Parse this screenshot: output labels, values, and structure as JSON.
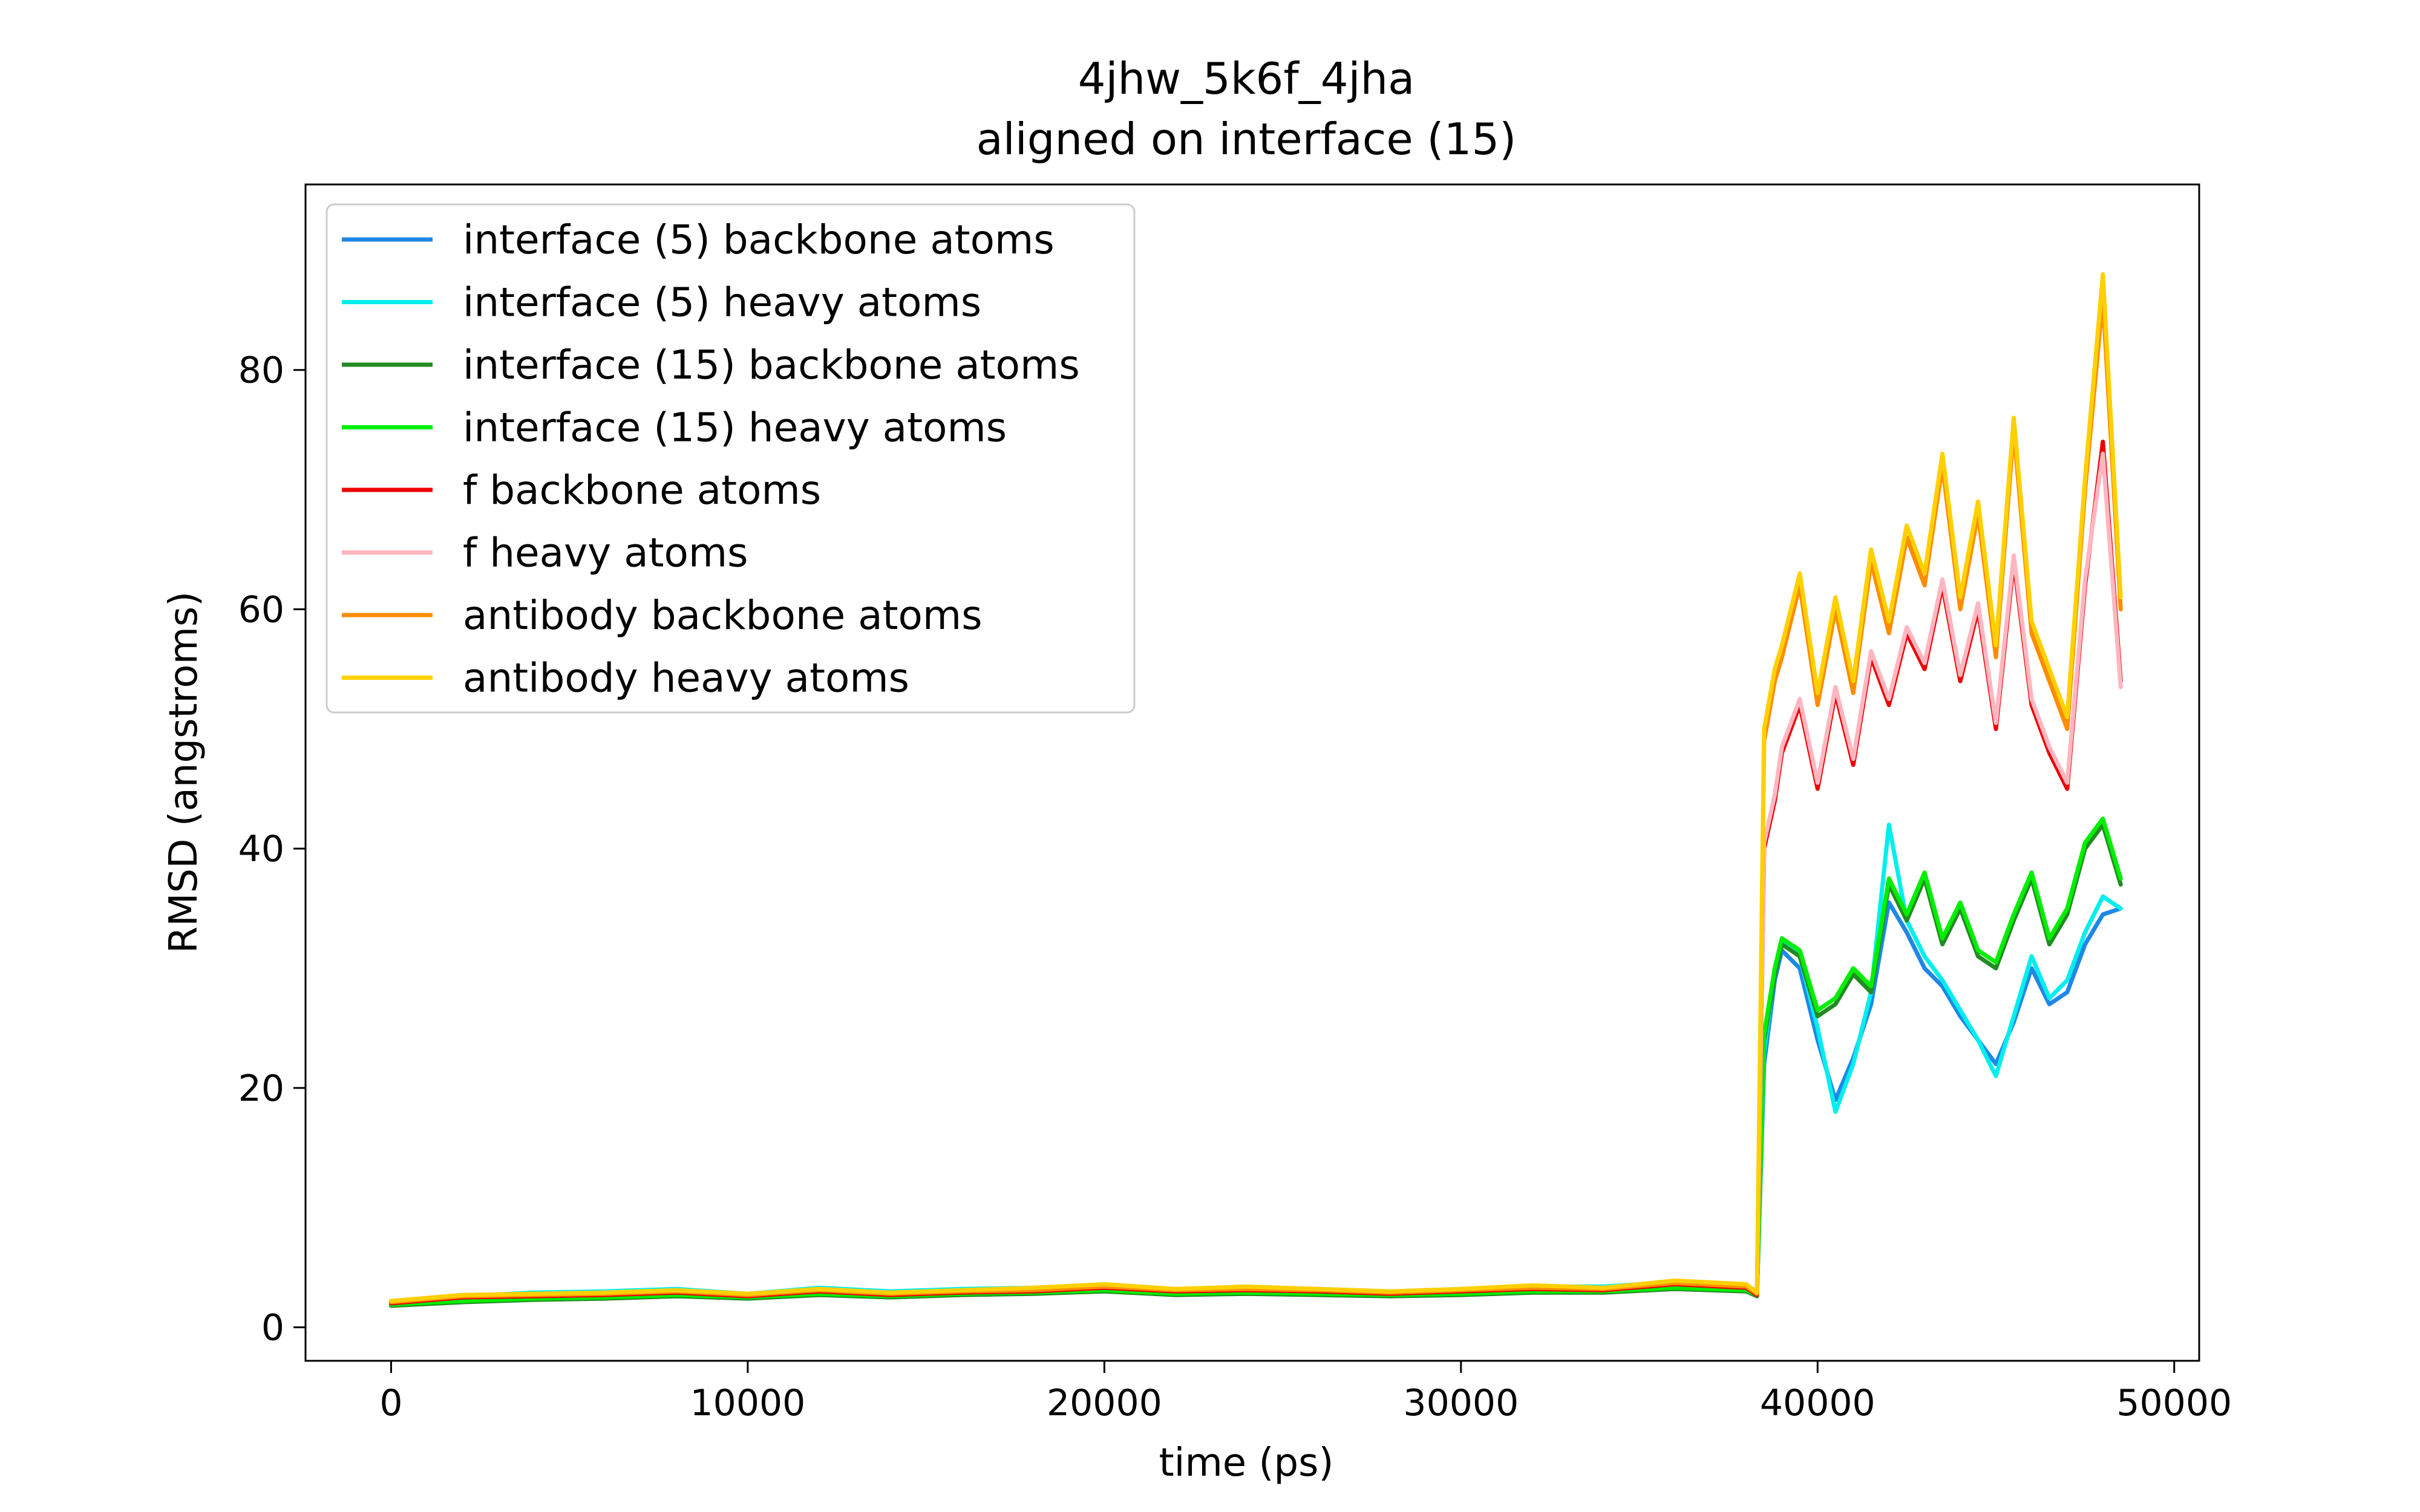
{
  "chart_data": {
    "type": "line",
    "title": "4jhw_5k6f_4jha",
    "subtitle": "aligned on interface (15)",
    "xlabel": "time (ps)",
    "ylabel": "RMSD (angstroms)",
    "xlim": [
      -2400,
      50700
    ],
    "ylim": [
      -2.8,
      95.5
    ],
    "xticks": [
      0,
      10000,
      20000,
      30000,
      40000,
      50000
    ],
    "xtick_labels": [
      "0",
      "10000",
      "20000",
      "30000",
      "40000",
      "50000"
    ],
    "yticks": [
      0,
      20,
      40,
      60,
      80
    ],
    "ytick_labels": [
      "0",
      "20",
      "40",
      "60",
      "80"
    ],
    "grid": false,
    "legend_position": "top-left",
    "series": [
      {
        "name": "interface (5) backbone atoms",
        "color": "#1e88e5",
        "x": [
          0,
          2000,
          4000,
          6000,
          8000,
          10000,
          12000,
          14000,
          16000,
          18000,
          20000,
          22000,
          24000,
          26000,
          28000,
          30000,
          32000,
          34000,
          36000,
          38000,
          38300,
          38500,
          38800,
          39000,
          39500,
          40000,
          40500,
          41000,
          41500,
          42000,
          42500,
          43000,
          43500,
          44000,
          44500,
          45000,
          45500,
          46000,
          46500,
          47000,
          47500,
          48000,
          48500
        ],
        "y": [
          2.0,
          2.4,
          2.6,
          2.7,
          2.9,
          2.6,
          3.0,
          2.8,
          3.0,
          3.1,
          3.3,
          3.0,
          3.1,
          3.0,
          2.8,
          3.0,
          3.2,
          3.2,
          3.6,
          3.3,
          2.8,
          22.0,
          29.0,
          31.5,
          30.0,
          24.0,
          19.0,
          22.5,
          27.0,
          35.5,
          33.0,
          30.0,
          28.5,
          26.0,
          24.0,
          22.0,
          25.5,
          30.0,
          27.0,
          28.0,
          32.0,
          34.5,
          35.0
        ]
      },
      {
        "name": "interface (5) heavy atoms",
        "color": "#00eeee",
        "x": [
          0,
          2000,
          4000,
          6000,
          8000,
          10000,
          12000,
          14000,
          16000,
          18000,
          20000,
          22000,
          24000,
          26000,
          28000,
          30000,
          32000,
          34000,
          36000,
          38000,
          38300,
          38500,
          38800,
          39000,
          39500,
          40000,
          40500,
          41000,
          41500,
          42000,
          42500,
          43000,
          43500,
          44000,
          44500,
          45000,
          45500,
          46000,
          46500,
          47000,
          47500,
          48000,
          48500
        ],
        "y": [
          2.2,
          2.6,
          2.9,
          3.0,
          3.2,
          2.8,
          3.3,
          3.0,
          3.2,
          3.3,
          3.5,
          3.2,
          3.3,
          3.2,
          3.0,
          3.2,
          3.4,
          3.4,
          3.8,
          3.5,
          3.0,
          23.0,
          30.0,
          32.5,
          31.0,
          25.0,
          18.0,
          22.0,
          28.0,
          42.0,
          34.0,
          31.0,
          29.0,
          26.5,
          24.0,
          21.0,
          26.0,
          31.0,
          27.5,
          29.0,
          33.0,
          36.0,
          35.0
        ]
      },
      {
        "name": "interface (15) backbone atoms",
        "color": "#228b22",
        "x": [
          0,
          2000,
          4000,
          6000,
          8000,
          10000,
          12000,
          14000,
          16000,
          18000,
          20000,
          22000,
          24000,
          26000,
          28000,
          30000,
          32000,
          34000,
          36000,
          38000,
          38300,
          38500,
          38800,
          39000,
          39500,
          40000,
          40500,
          41000,
          41500,
          42000,
          42500,
          43000,
          43500,
          44000,
          44500,
          45000,
          45500,
          46000,
          46500,
          47000,
          47500,
          48000,
          48500
        ],
        "y": [
          1.8,
          2.1,
          2.3,
          2.4,
          2.6,
          2.4,
          2.7,
          2.5,
          2.7,
          2.8,
          3.0,
          2.7,
          2.8,
          2.7,
          2.6,
          2.7,
          2.9,
          2.9,
          3.2,
          3.0,
          2.6,
          24.0,
          29.5,
          32.0,
          31.0,
          26.0,
          27.0,
          29.5,
          28.0,
          37.0,
          34.0,
          37.5,
          32.0,
          35.0,
          31.0,
          30.0,
          34.0,
          37.5,
          32.0,
          34.5,
          40.0,
          42.0,
          37.0
        ]
      },
      {
        "name": "interface (15) heavy atoms",
        "color": "#00ee00",
        "x": [
          0,
          2000,
          4000,
          6000,
          8000,
          10000,
          12000,
          14000,
          16000,
          18000,
          20000,
          22000,
          24000,
          26000,
          28000,
          30000,
          32000,
          34000,
          36000,
          38000,
          38300,
          38500,
          38800,
          39000,
          39500,
          40000,
          40500,
          41000,
          41500,
          42000,
          42500,
          43000,
          43500,
          44000,
          44500,
          45000,
          45500,
          46000,
          46500,
          47000,
          47500,
          48000,
          48500
        ],
        "y": [
          1.9,
          2.2,
          2.4,
          2.5,
          2.7,
          2.5,
          2.8,
          2.6,
          2.8,
          2.9,
          3.1,
          2.8,
          2.9,
          2.8,
          2.7,
          2.8,
          3.0,
          3.0,
          3.3,
          3.1,
          2.7,
          24.5,
          30.0,
          32.5,
          31.5,
          26.5,
          27.5,
          30.0,
          28.5,
          37.5,
          34.5,
          38.0,
          32.5,
          35.5,
          31.5,
          30.5,
          34.5,
          38.0,
          32.5,
          35.0,
          40.5,
          42.5,
          37.5
        ]
      },
      {
        "name": "f backbone atoms",
        "color": "#ee0000",
        "x": [
          0,
          2000,
          4000,
          6000,
          8000,
          10000,
          12000,
          14000,
          16000,
          18000,
          20000,
          22000,
          24000,
          26000,
          28000,
          30000,
          32000,
          34000,
          36000,
          38000,
          38300,
          38500,
          38800,
          39000,
          39500,
          40000,
          40500,
          41000,
          41500,
          42000,
          42500,
          43000,
          43500,
          44000,
          44500,
          45000,
          45500,
          46000,
          46500,
          47000,
          47500,
          48000,
          48500
        ],
        "y": [
          2.0,
          2.5,
          2.6,
          2.7,
          2.9,
          2.6,
          3.0,
          2.7,
          2.9,
          3.0,
          3.3,
          3.0,
          3.1,
          3.0,
          2.8,
          3.0,
          3.2,
          3.1,
          3.6,
          3.3,
          2.7,
          40.0,
          44.0,
          48.0,
          52.0,
          45.0,
          53.0,
          47.0,
          56.0,
          52.0,
          58.0,
          55.0,
          62.0,
          54.0,
          60.0,
          50.0,
          64.0,
          52.0,
          48.0,
          45.0,
          62.0,
          74.0,
          54.0
        ]
      },
      {
        "name": "f heavy atoms",
        "color": "#ffb6c1",
        "x": [
          0,
          2000,
          4000,
          6000,
          8000,
          10000,
          12000,
          14000,
          16000,
          18000,
          20000,
          22000,
          24000,
          26000,
          28000,
          30000,
          32000,
          34000,
          36000,
          38000,
          38300,
          38500,
          38800,
          39000,
          39500,
          40000,
          40500,
          41000,
          41500,
          42000,
          42500,
          43000,
          43500,
          44000,
          44500,
          45000,
          45500,
          46000,
          46500,
          47000,
          47500,
          48000,
          48500
        ],
        "y": [
          2.2,
          2.7,
          2.8,
          2.9,
          3.1,
          2.8,
          3.2,
          2.9,
          3.1,
          3.2,
          3.5,
          3.2,
          3.3,
          3.2,
          3.0,
          3.2,
          3.4,
          3.3,
          3.8,
          3.5,
          2.9,
          40.5,
          44.5,
          48.5,
          52.5,
          45.5,
          53.5,
          47.5,
          56.5,
          52.5,
          58.5,
          55.5,
          62.5,
          54.5,
          60.5,
          50.5,
          64.5,
          52.5,
          48.5,
          45.5,
          62.5,
          73.0,
          53.5
        ]
      },
      {
        "name": "antibody backbone atoms",
        "color": "#ff8c00",
        "x": [
          0,
          2000,
          4000,
          6000,
          8000,
          10000,
          12000,
          14000,
          16000,
          18000,
          20000,
          22000,
          24000,
          26000,
          28000,
          30000,
          32000,
          34000,
          36000,
          38000,
          38300,
          38500,
          38800,
          39000,
          39500,
          40000,
          40500,
          41000,
          41500,
          42000,
          42500,
          43000,
          43500,
          44000,
          44500,
          45000,
          45500,
          46000,
          46500,
          47000,
          47500,
          48000,
          48500
        ],
        "y": [
          2.1,
          2.6,
          2.7,
          2.8,
          3.0,
          2.7,
          3.1,
          2.8,
          3.0,
          3.1,
          3.4,
          3.1,
          3.2,
          3.1,
          2.9,
          3.1,
          3.3,
          3.2,
          3.7,
          3.4,
          2.8,
          49.0,
          54.0,
          56.0,
          62.0,
          52.0,
          60.0,
          53.0,
          64.0,
          58.0,
          66.0,
          62.0,
          72.0,
          60.0,
          68.0,
          56.0,
          75.0,
          58.0,
          54.0,
          50.0,
          70.0,
          86.0,
          60.0
        ]
      },
      {
        "name": "antibody heavy atoms",
        "color": "#ffd000",
        "x": [
          0,
          2000,
          4000,
          6000,
          8000,
          10000,
          12000,
          14000,
          16000,
          18000,
          20000,
          22000,
          24000,
          26000,
          28000,
          30000,
          32000,
          34000,
          36000,
          38000,
          38300,
          38500,
          38800,
          39000,
          39500,
          40000,
          40500,
          41000,
          41500,
          42000,
          42500,
          43000,
          43500,
          44000,
          44500,
          45000,
          45500,
          46000,
          46500,
          47000,
          47500,
          48000,
          48500
        ],
        "y": [
          2.2,
          2.7,
          2.8,
          2.9,
          3.1,
          2.8,
          3.2,
          2.9,
          3.1,
          3.3,
          3.6,
          3.2,
          3.4,
          3.2,
          3.0,
          3.2,
          3.5,
          3.3,
          3.9,
          3.6,
          2.9,
          50.0,
          55.0,
          57.0,
          63.0,
          53.0,
          61.0,
          54.0,
          65.0,
          59.0,
          67.0,
          63.0,
          73.0,
          61.0,
          69.0,
          57.0,
          76.0,
          59.0,
          55.0,
          51.0,
          71.0,
          88.0,
          61.0
        ]
      }
    ]
  }
}
